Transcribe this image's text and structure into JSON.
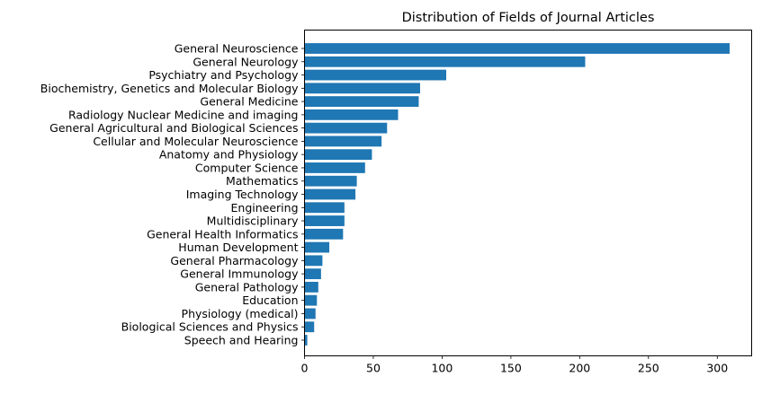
{
  "chart_data": {
    "type": "bar",
    "orientation": "horizontal",
    "title": "Distribution of Fields of Journal Articles",
    "xlabel": "",
    "ylabel": "",
    "xlim": [
      0,
      325
    ],
    "xticks": [
      0,
      50,
      100,
      150,
      200,
      250,
      300
    ],
    "grid": false,
    "bar_color": "#1f77b4",
    "categories": [
      "General Neuroscience",
      "General Neurology",
      "Psychiatry and Psychology",
      "Biochemistry, Genetics and Molecular Biology",
      "General Medicine",
      "Radiology Nuclear Medicine and imaging",
      "General Agricultural and Biological Sciences",
      "Cellular and Molecular Neuroscience",
      "Anatomy and Physiology",
      "Computer Science",
      "Mathematics",
      "Imaging Technology",
      "Engineering",
      "Multidisciplinary",
      "General Health Informatics",
      "Human Development",
      "General Pharmacology",
      "General Immunology",
      "General Pathology",
      "Education",
      "Physiology (medical)",
      "Biological Sciences and Physics",
      "Speech and Hearing"
    ],
    "values": [
      309,
      204,
      103,
      84,
      83,
      68,
      60,
      56,
      49,
      44,
      38,
      37,
      29,
      29,
      28,
      18,
      13,
      12,
      10,
      9,
      8,
      7,
      2
    ]
  }
}
